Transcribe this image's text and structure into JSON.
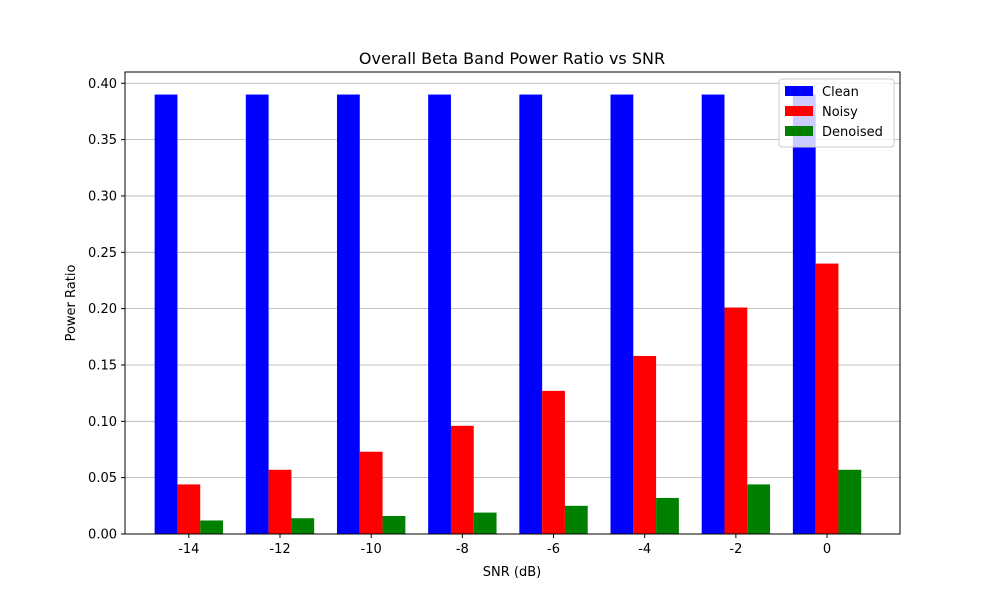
{
  "chart_data": {
    "type": "bar",
    "title": "Overall Beta Band Power Ratio vs SNR",
    "xlabel": "SNR (dB)",
    "ylabel": "Power Ratio",
    "categories": [
      "-14",
      "-12",
      "-10",
      "-8",
      "-6",
      "-4",
      "-2",
      "0"
    ],
    "ylim": [
      0,
      0.4
    ],
    "yticks": [
      "0.00",
      "0.05",
      "0.10",
      "0.15",
      "0.20",
      "0.25",
      "0.30",
      "0.35",
      "0.40"
    ],
    "grid": "y",
    "legend_position": "top-right",
    "series": [
      {
        "name": "Clean",
        "color": "#0000ff",
        "values": [
          0.39,
          0.39,
          0.39,
          0.39,
          0.39,
          0.39,
          0.39,
          0.39
        ]
      },
      {
        "name": "Noisy",
        "color": "#ff0000",
        "values": [
          0.044,
          0.057,
          0.073,
          0.096,
          0.127,
          0.158,
          0.201,
          0.24
        ]
      },
      {
        "name": "Denoised",
        "color": "#008000",
        "values": [
          0.012,
          0.014,
          0.016,
          0.019,
          0.025,
          0.032,
          0.044,
          0.057
        ]
      }
    ]
  }
}
